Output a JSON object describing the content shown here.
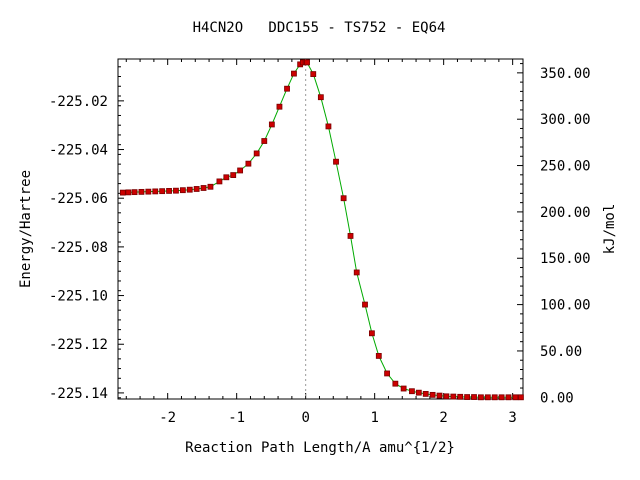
{
  "chart_data": {
    "type": "line",
    "title": "H4CN2O   DDC155 - TS752 - EQ64",
    "xlabel": "Reaction Path Length/A amu^{1/2}",
    "ylabel": "Energy/Hartree",
    "y2label": "kJ/mol",
    "xlim": [
      -2.72,
      3.15
    ],
    "ylim": [
      -225.1425,
      -225.0028
    ],
    "x_ticks": [
      -2,
      -1,
      0,
      1,
      2,
      3
    ],
    "x_tick_labels": [
      "-2",
      "-1",
      "0",
      "1",
      "2",
      "3"
    ],
    "y_ticks": [
      -225.02,
      -225.04,
      -225.06,
      -225.08,
      -225.1,
      -225.12,
      -225.14
    ],
    "y_tick_labels": [
      "-225.02",
      "-225.04",
      "-225.06",
      "-225.08",
      "-225.10",
      "-225.12",
      "-225.14"
    ],
    "y2_ticks": [
      0,
      50,
      100,
      150,
      200,
      250,
      300,
      350
    ],
    "y2_tick_labels": [
      "0.00",
      "50.00",
      "100.00",
      "150.00",
      "200.00",
      "250.00",
      "300.00",
      "350.00"
    ],
    "y2_zero_hartree": -225.1418,
    "y2_kj_per_hartree": 2625.5,
    "ts_marker_x": 0.0,
    "line_color": "#00aa00",
    "point_color": "#cc0000",
    "point_edge_color": "#7a0000",
    "series": [
      {
        "values": [
          [
            -2.65,
            -225.0577
          ],
          [
            -2.57,
            -225.0576
          ],
          [
            -2.48,
            -225.0575
          ],
          [
            -2.38,
            -225.0574
          ],
          [
            -2.28,
            -225.0573
          ],
          [
            -2.18,
            -225.0572
          ],
          [
            -2.08,
            -225.0571
          ],
          [
            -1.98,
            -225.057
          ],
          [
            -1.88,
            -225.0569
          ],
          [
            -1.78,
            -225.0567
          ],
          [
            -1.68,
            -225.0565
          ],
          [
            -1.58,
            -225.0562
          ],
          [
            -1.48,
            -225.0558
          ],
          [
            -1.38,
            -225.0553
          ],
          [
            -1.25,
            -225.0531
          ],
          [
            -1.15,
            -225.0514
          ],
          [
            -1.05,
            -225.0505
          ],
          [
            -0.95,
            -225.0486
          ],
          [
            -0.83,
            -225.0458
          ],
          [
            -0.71,
            -225.0416
          ],
          [
            -0.6,
            -225.0365
          ],
          [
            -0.49,
            -225.0297
          ],
          [
            -0.38,
            -225.0224
          ],
          [
            -0.27,
            -225.015
          ],
          [
            -0.17,
            -225.0088
          ],
          [
            -0.08,
            -225.005
          ],
          [
            -0.04,
            -225.0042
          ],
          [
            0.0,
            -225.0041
          ],
          [
            0.02,
            -225.0042
          ],
          [
            0.11,
            -225.009
          ],
          [
            0.22,
            -225.0185
          ],
          [
            0.33,
            -225.0305
          ],
          [
            0.44,
            -225.045
          ],
          [
            0.55,
            -225.06
          ],
          [
            0.65,
            -225.0755
          ],
          [
            0.74,
            -225.0905
          ],
          [
            0.86,
            -225.1037
          ],
          [
            0.96,
            -225.1155
          ],
          [
            1.06,
            -225.1248
          ],
          [
            1.18,
            -225.132
          ],
          [
            1.3,
            -225.1362
          ],
          [
            1.42,
            -225.1382
          ],
          [
            1.54,
            -225.1393
          ],
          [
            1.64,
            -225.1399
          ],
          [
            1.74,
            -225.1404
          ],
          [
            1.84,
            -225.1408
          ],
          [
            1.94,
            -225.1411
          ],
          [
            2.04,
            -225.1414
          ],
          [
            2.14,
            -225.1415
          ],
          [
            2.24,
            -225.1416
          ],
          [
            2.34,
            -225.1417
          ],
          [
            2.44,
            -225.1417
          ],
          [
            2.54,
            -225.1418
          ],
          [
            2.64,
            -225.1418
          ],
          [
            2.74,
            -225.1418
          ],
          [
            2.84,
            -225.1418
          ],
          [
            2.94,
            -225.1418
          ],
          [
            3.04,
            -225.1418
          ],
          [
            3.12,
            -225.1418
          ]
        ]
      }
    ]
  }
}
